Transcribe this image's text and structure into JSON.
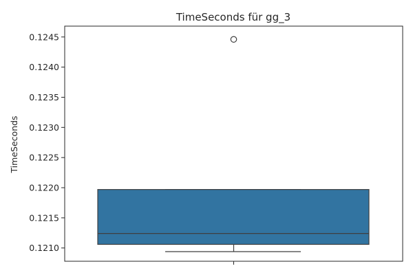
{
  "chart_data": {
    "type": "box",
    "title": "TimeSeconds für gg_3",
    "ylabel": "TimeSeconds",
    "xlabel": "",
    "ylim": [
      0.12078,
      0.12468
    ],
    "yticks": [
      0.121,
      0.1215,
      0.122,
      0.1225,
      0.123,
      0.1235,
      0.124,
      0.1245
    ],
    "ytick_labels": [
      "0.1210",
      "0.1215",
      "0.1220",
      "0.1225",
      "0.1230",
      "0.1235",
      "0.1240",
      "0.1245"
    ],
    "grid": false,
    "box": {
      "whisker_low": 0.12094,
      "q1": 0.12106,
      "median": 0.12124,
      "q3": 0.12197,
      "whisker_high": 0.12197,
      "outliers": [
        0.12446
      ]
    },
    "colors": {
      "box_fill": "#3274a1",
      "line": "#3f3f3f",
      "axis": "#262626"
    }
  }
}
